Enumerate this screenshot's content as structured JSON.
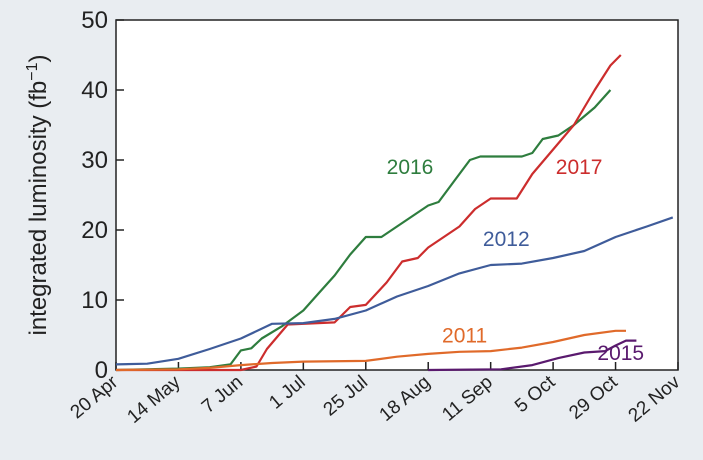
{
  "chart_data": {
    "type": "line",
    "title": "",
    "xlabel": "",
    "ylabel": "integrated luminosity (fb",
    "ylabel_sup": "−1",
    "ylabel_close": ")",
    "ylim": [
      0,
      50
    ],
    "xlim": [
      0,
      216
    ],
    "y_ticks": [
      0,
      10,
      20,
      30,
      40,
      50
    ],
    "x_ticks": [
      {
        "label": "20 Apr",
        "day": 0
      },
      {
        "label": "14 May",
        "day": 24
      },
      {
        "label": "7 Jun",
        "day": 48
      },
      {
        "label": "1 Jul",
        "day": 72
      },
      {
        "label": "25 Jul",
        "day": 96
      },
      {
        "label": "18 Aug",
        "day": 120
      },
      {
        "label": "11 Sep",
        "day": 144
      },
      {
        "label": "5 Oct",
        "day": 168
      },
      {
        "label": "29 Oct",
        "day": 192
      },
      {
        "label": "22 Nov",
        "day": 216
      }
    ],
    "grid": false,
    "legend": "inline labels",
    "series": [
      {
        "name": "2016",
        "color": "#2e7d3e",
        "points": [
          [
            0,
            0
          ],
          [
            24,
            0.2
          ],
          [
            36,
            0.4
          ],
          [
            44,
            0.8
          ],
          [
            48,
            2.8
          ],
          [
            52,
            3.1
          ],
          [
            56,
            4.5
          ],
          [
            64,
            6.3
          ],
          [
            72,
            8.5
          ],
          [
            78,
            11
          ],
          [
            84,
            13.5
          ],
          [
            90,
            16.5
          ],
          [
            96,
            19
          ],
          [
            102,
            19
          ],
          [
            108,
            20.5
          ],
          [
            114,
            22
          ],
          [
            120,
            23.5
          ],
          [
            124,
            24
          ],
          [
            130,
            27
          ],
          [
            136,
            30
          ],
          [
            140,
            30.5
          ],
          [
            156,
            30.5
          ],
          [
            160,
            31
          ],
          [
            164,
            33
          ],
          [
            170,
            33.5
          ],
          [
            176,
            35
          ],
          [
            184,
            37.5
          ],
          [
            190,
            40
          ]
        ]
      },
      {
        "name": "2017",
        "color": "#cc2d2d",
        "points": [
          [
            0,
            0
          ],
          [
            48,
            0
          ],
          [
            54,
            0.5
          ],
          [
            58,
            3
          ],
          [
            66,
            6.5
          ],
          [
            84,
            6.8
          ],
          [
            90,
            9
          ],
          [
            96,
            9.3
          ],
          [
            104,
            12.5
          ],
          [
            110,
            15.5
          ],
          [
            116,
            16
          ],
          [
            120,
            17.5
          ],
          [
            126,
            19
          ],
          [
            132,
            20.5
          ],
          [
            138,
            23
          ],
          [
            144,
            24.5
          ],
          [
            154,
            24.5
          ],
          [
            160,
            28
          ],
          [
            168,
            31.5
          ],
          [
            176,
            35
          ],
          [
            184,
            40
          ],
          [
            190,
            43.5
          ],
          [
            194,
            45
          ]
        ]
      },
      {
        "name": "2012",
        "color": "#3f5c9a",
        "points": [
          [
            0,
            0.8
          ],
          [
            12,
            0.9
          ],
          [
            24,
            1.6
          ],
          [
            36,
            3
          ],
          [
            48,
            4.5
          ],
          [
            60,
            6.6
          ],
          [
            72,
            6.7
          ],
          [
            84,
            7.3
          ],
          [
            96,
            8.5
          ],
          [
            108,
            10.5
          ],
          [
            120,
            12
          ],
          [
            132,
            13.8
          ],
          [
            144,
            15
          ],
          [
            156,
            15.2
          ],
          [
            168,
            16
          ],
          [
            180,
            17
          ],
          [
            192,
            19
          ],
          [
            204,
            20.5
          ],
          [
            214,
            21.8
          ]
        ]
      },
      {
        "name": "2011",
        "color": "#e06a2a",
        "points": [
          [
            0,
            0
          ],
          [
            24,
            0.1
          ],
          [
            36,
            0.3
          ],
          [
            48,
            0.7
          ],
          [
            60,
            1
          ],
          [
            72,
            1.2
          ],
          [
            96,
            1.3
          ],
          [
            108,
            1.9
          ],
          [
            120,
            2.3
          ],
          [
            132,
            2.6
          ],
          [
            144,
            2.7
          ],
          [
            156,
            3.2
          ],
          [
            168,
            4
          ],
          [
            180,
            5
          ],
          [
            192,
            5.6
          ],
          [
            196,
            5.6
          ]
        ]
      },
      {
        "name": "2015",
        "color": "#5a1a6e",
        "points": [
          [
            120,
            0
          ],
          [
            148,
            0.1
          ],
          [
            160,
            0.7
          ],
          [
            170,
            1.7
          ],
          [
            180,
            2.5
          ],
          [
            188,
            2.7
          ],
          [
            192,
            3.5
          ],
          [
            196,
            4.2
          ],
          [
            200,
            4.2
          ]
        ]
      }
    ],
    "annotations": [
      {
        "text": "2016",
        "color": "#2e7d3e",
        "at": [
          113,
          28
        ]
      },
      {
        "text": "2017",
        "color": "#cc2d2d",
        "at": [
          178,
          28
        ]
      },
      {
        "text": "2012",
        "color": "#3f5c9a",
        "at": [
          150,
          17.7
        ]
      },
      {
        "text": "2011",
        "color": "#e06a2a",
        "at": [
          134,
          3.9
        ]
      },
      {
        "text": "2015",
        "color": "#5a1a6e",
        "at": [
          194,
          1.4
        ]
      }
    ]
  }
}
